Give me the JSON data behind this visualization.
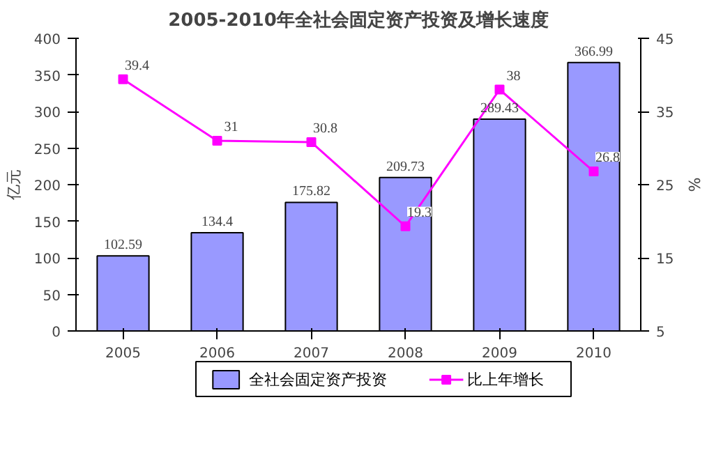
{
  "chart_data": {
    "type": "bar",
    "title": "2005-2010年全社会固定资产投资及增长速度",
    "ylabel": "亿元",
    "y2label": "%",
    "categories": [
      "2005",
      "2006",
      "2007",
      "2008",
      "2009",
      "2010"
    ],
    "series": [
      {
        "name": "全社会固定资产投资",
        "color": "#9999ff",
        "values": [
          102.59,
          134.4,
          175.82,
          209.73,
          289.43,
          366.99
        ]
      },
      {
        "name": "比上年增长",
        "type": "line",
        "axis": "y2",
        "color": "#ff00ff",
        "marker": "square",
        "values": [
          39.4,
          31,
          30.8,
          19.3,
          38,
          26.8
        ]
      }
    ],
    "ylim": [
      0,
      400
    ],
    "yticks": [
      0,
      50,
      100,
      150,
      200,
      250,
      300,
      350,
      400
    ],
    "y2lim": [
      5,
      45
    ],
    "y2ticks": [
      5,
      15,
      25,
      35,
      45
    ],
    "data_labels": true,
    "grid": false,
    "legend": "bottom"
  }
}
